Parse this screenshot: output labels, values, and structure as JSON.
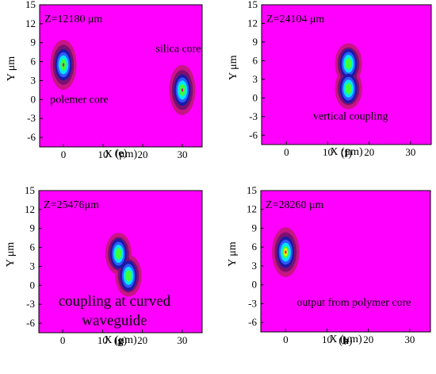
{
  "colors": {
    "background": "#ff00ff",
    "level_outer": "#c71585",
    "level_mid": "#7a1070",
    "level_dark": "#1a1aa6",
    "level_blue": "#2e5bff",
    "level_cyan": "#00e5ff",
    "level_green": "#3cff3c",
    "level_yellow": "#ffff00",
    "text": "#000000"
  },
  "chart_data": [
    {
      "type": "heatmap",
      "panel_label": "(e)",
      "annotation": "Z=12180 μm",
      "xlabel": "X (μm)",
      "ylabel": "Y μm",
      "xlim": [
        -6,
        35
      ],
      "ylim": [
        -7.5,
        15
      ],
      "xticks": [
        0,
        10,
        20,
        30
      ],
      "yticks": [
        15,
        12,
        9,
        6,
        3,
        0,
        -3,
        -6
      ],
      "text_labels": [
        {
          "text": "silica core",
          "x": 29,
          "y": 7.5
        },
        {
          "text": "polemer core",
          "x": 4,
          "y": -0.5
        }
      ],
      "spots": [
        {
          "x": 0,
          "y": 5.5,
          "peak": "green"
        },
        {
          "x": 30,
          "y": 1.5,
          "peak": "green"
        }
      ]
    },
    {
      "type": "heatmap",
      "panel_label": "(f)",
      "annotation": "Z=24104 μm",
      "xlabel": "X (μm)",
      "ylabel": "Y μm",
      "xlim": [
        -6,
        35
      ],
      "ylim": [
        -7.5,
        15
      ],
      "xticks": [
        0,
        10,
        20,
        30
      ],
      "yticks": [
        15,
        12,
        9,
        6,
        3,
        0,
        -3,
        -6
      ],
      "text_labels": [
        {
          "text": "vertical coupling",
          "x": 15.5,
          "y": -3.5
        }
      ],
      "spots": [
        {
          "x": 15,
          "y": 5.5,
          "peak": "green"
        },
        {
          "x": 15,
          "y": 1.5,
          "peak": "green"
        }
      ]
    },
    {
      "type": "heatmap",
      "panel_label": "(g)",
      "annotation": "Z=25476μm",
      "xlabel": "X (μm)",
      "ylabel": "Y μm",
      "xlim": [
        -6,
        35
      ],
      "ylim": [
        -7.5,
        15
      ],
      "xticks": [
        0,
        10,
        20,
        30
      ],
      "yticks": [
        15,
        12,
        9,
        6,
        3,
        0,
        -3,
        -6
      ],
      "text_labels": [
        {
          "text": "coupling at curved",
          "x": 13,
          "y": -3.2
        },
        {
          "text": "waveguide",
          "x": 13,
          "y": -6.3
        }
      ],
      "spots": [
        {
          "x": 14,
          "y": 5,
          "peak": "green"
        },
        {
          "x": 16.5,
          "y": 1.5,
          "peak": "green"
        }
      ]
    },
    {
      "type": "heatmap",
      "panel_label": "(h)",
      "annotation": "Z=28260 μm",
      "xlabel": "X (μm)",
      "ylabel": "Y μm",
      "xlim": [
        -6,
        35
      ],
      "ylim": [
        -7.5,
        15
      ],
      "xticks": [
        0,
        10,
        20,
        30
      ],
      "yticks": [
        15,
        12,
        9,
        6,
        3,
        0,
        -3,
        -6
      ],
      "text_labels": [
        {
          "text": "output from polymer core",
          "x": 16.5,
          "y": -3.3
        }
      ],
      "spots": [
        {
          "x": 0,
          "y": 5.2,
          "peak": "yellow"
        }
      ]
    }
  ]
}
